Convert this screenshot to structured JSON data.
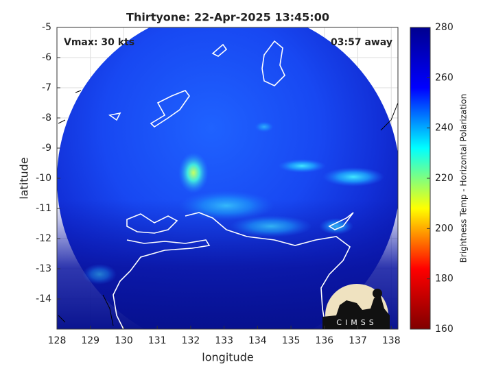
{
  "chart_data": {
    "type": "map",
    "title": "Thirtyone: 22-Apr-2025 13:45:00",
    "annotations": [
      "Vmax: 30 kts",
      "03:57 away"
    ],
    "x_label": "longitude",
    "y_label": "latitude",
    "xlim": [
      128,
      138.2
    ],
    "ylim": [
      -15,
      -5
    ],
    "xticks": [
      128,
      129,
      130,
      131,
      132,
      133,
      134,
      135,
      136,
      137,
      138
    ],
    "yticks": [
      -5,
      -6,
      -7,
      -8,
      -9,
      -10,
      -11,
      -12,
      -13,
      -14
    ],
    "grid": true,
    "colorbar": {
      "label": "Brightness Temp - Horizontal Polarization",
      "lim": [
        160,
        280
      ],
      "ticks": [
        160,
        180,
        200,
        220,
        240,
        260,
        280
      ],
      "colors": [
        "#800000",
        "#ff0000",
        "#ffff00",
        "#00ffff",
        "#0000ff",
        "#00008f"
      ]
    },
    "logo": "CIMSS"
  }
}
